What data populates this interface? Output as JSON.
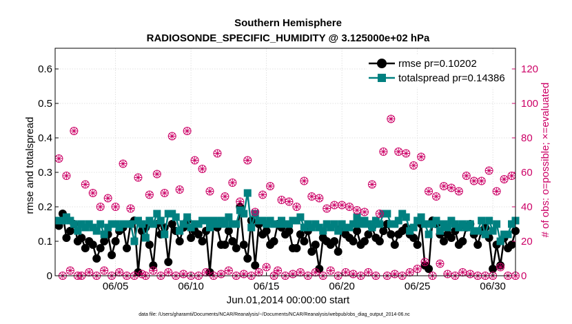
{
  "chart_data": {
    "type": "line",
    "title": "Southern Hemisphere",
    "subtitle": "RADIOSONDE_SPECIFIC_HUMIDITY @ 3.125000e+02 hPa",
    "xlabel": "Jun.01,2014 00:00:00 start",
    "ylabel_left": "rmse and totalspread",
    "ylabel_right": "# of obs: o=possible; ×=evaluated",
    "footnote": "data file: /Users/gharamti/Documents/NCAR/Reanalysis/~/Documents/NCAR/Reanalysis/webpub/obs_diag_output_2014-06.nc",
    "xlim": [
      1,
      31.5
    ],
    "x_ticks": [
      {
        "value": 5,
        "label": "06/05"
      },
      {
        "value": 10,
        "label": "06/10"
      },
      {
        "value": 15,
        "label": "06/15"
      },
      {
        "value": 20,
        "label": "06/20"
      },
      {
        "value": 25,
        "label": "06/25"
      },
      {
        "value": 30,
        "label": "06/30"
      }
    ],
    "ylim_left": [
      0,
      0.66
    ],
    "y_ticks_left": [
      "0",
      "0.1",
      "0.2",
      "0.3",
      "0.4",
      "0.5",
      "0.6"
    ],
    "ylim_right": [
      0,
      132
    ],
    "y_ticks_right": [
      "0",
      "20",
      "40",
      "60",
      "80",
      "100",
      "120"
    ],
    "x_start": 1.25,
    "x_step": 0.25,
    "series": [
      {
        "name": "rmse pr=0.10202",
        "axis": "left",
        "color": "#000000",
        "marker": "circle",
        "values": [
          0.145,
          0.18,
          0.11,
          0.13,
          0.15,
          0.1,
          0.11,
          0.08,
          0.1,
          0.09,
          0.05,
          0.08,
          0.1,
          0.12,
          0.06,
          0.1,
          0.13,
          0.14,
          0.08,
          0.15,
          0.16,
          0.01,
          0.13,
          0.14,
          0.09,
          0.03,
          0.15,
          0.12,
          0.14,
          0.04,
          0.15,
          0.13,
          0.1,
          0.14,
          0.16,
          0.11,
          0.13,
          0.12,
          0.1,
          0.13,
          0.01,
          0.15,
          0.14,
          0.09,
          0.09,
          0.13,
          0.1,
          0.08,
          0.2,
          0.09,
          0.05,
          0.16,
          0.03,
          0.15,
          0.12,
          0.13,
          0.09,
          0.1,
          0.15,
          0.14,
          0.12,
          0.13,
          0.08,
          0.08,
          0.12,
          0.1,
          0.13,
          0.07,
          0.09,
          0.02,
          0.11,
          0.1,
          0.09,
          0.1,
          0.07,
          0.14,
          0.12,
          0.11,
          0.1,
          0.13,
          0.09,
          0.1,
          0.12,
          0.14,
          0.11,
          0.1,
          0.13,
          0.15,
          0.12,
          0.09,
          0.12,
          0.13,
          0.14,
          0.12,
          0.11,
          0.09,
          0.15,
          0.03,
          0.02,
          0.16,
          0.15,
          0.12,
          0.1,
          0.12,
          0.11,
          0.13,
          0.09,
          0.1,
          0.14,
          0.15,
          0.12,
          0.09,
          0.13,
          0.14,
          0.11,
          0.02,
          0.09,
          0.03,
          0.11,
          0.08,
          0.09,
          0.13
        ]
      },
      {
        "name": "totalspread pr=0.14386",
        "axis": "left",
        "color": "#008080",
        "marker": "square",
        "values": [
          0.16,
          0.16,
          0.17,
          0.16,
          0.15,
          0.13,
          0.15,
          0.14,
          0.15,
          0.14,
          0.13,
          0.15,
          0.12,
          0.14,
          0.15,
          0.15,
          0.14,
          0.15,
          0.15,
          0.15,
          0.1,
          0.16,
          0.15,
          0.11,
          0.16,
          0.15,
          0.18,
          0.16,
          0.12,
          0.18,
          0.18,
          0.17,
          0.13,
          0.15,
          0.17,
          0.14,
          0.15,
          0.15,
          0.16,
          0.16,
          0.14,
          0.16,
          0.15,
          0.16,
          0.15,
          0.17,
          0.15,
          0.15,
          0.19,
          0.18,
          0.24,
          0.14,
          0.18,
          0.16,
          0.16,
          0.15,
          0.16,
          0.15,
          0.15,
          0.16,
          0.15,
          0.15,
          0.16,
          0.16,
          0.17,
          0.14,
          0.15,
          0.14,
          0.15,
          0.14,
          0.13,
          0.15,
          0.14,
          0.15,
          0.13,
          0.15,
          0.14,
          0.14,
          0.15,
          0.17,
          0.15,
          0.16,
          0.15,
          0.14,
          0.16,
          0.15,
          0.18,
          0.18,
          0.15,
          0.15,
          0.16,
          0.18,
          0.17,
          0.13,
          0.14,
          0.16,
          0.17,
          0.15,
          0.12,
          0.15,
          0.16,
          0.13,
          0.15,
          0.14,
          0.16,
          0.15,
          0.14,
          0.15,
          0.14,
          0.15,
          0.13,
          0.13,
          0.16,
          0.12,
          0.16,
          0.13,
          0.15,
          0.1,
          0.12,
          0.12,
          0.15,
          0.16
        ]
      },
      {
        "name": "obs possible",
        "axis": "right",
        "color": "#CC0066",
        "marker": "open-circle",
        "values": [
          68,
          0,
          58,
          3,
          84,
          0,
          0,
          53,
          2,
          48,
          0,
          40,
          3,
          45,
          0,
          40,
          2,
          65,
          0,
          39,
          0,
          57,
          1,
          0,
          47,
          3,
          59,
          0,
          48,
          2,
          81,
          0,
          50,
          1,
          84,
          0,
          67,
          0,
          62,
          2,
          49,
          0,
          71,
          1,
          46,
          3,
          54,
          0,
          43,
          1,
          67,
          0,
          37,
          2,
          47,
          5,
          52,
          0,
          3,
          44,
          0,
          43,
          1,
          40,
          2,
          55,
          0,
          46,
          2,
          45,
          0,
          39,
          3,
          41,
          0,
          41,
          2,
          40,
          1,
          38,
          0,
          37,
          2,
          53,
          0,
          36,
          72,
          0,
          91,
          1,
          72,
          0,
          71,
          2,
          64,
          4,
          69,
          8,
          49,
          0,
          46,
          7,
          52,
          1,
          51,
          0,
          49,
          2,
          58,
          1,
          55,
          0,
          55,
          0,
          61,
          0,
          49,
          5,
          56,
          0,
          58,
          0
        ]
      },
      {
        "name": "obs evaluated",
        "axis": "right",
        "color": "#CC0066",
        "marker": "x",
        "values": [
          68,
          0,
          58,
          3,
          84,
          0,
          0,
          53,
          2,
          48,
          0,
          40,
          3,
          45,
          0,
          40,
          2,
          65,
          0,
          39,
          0,
          57,
          1,
          0,
          47,
          3,
          59,
          0,
          48,
          2,
          81,
          0,
          50,
          1,
          84,
          0,
          67,
          0,
          62,
          2,
          49,
          0,
          71,
          1,
          46,
          3,
          54,
          0,
          43,
          1,
          67,
          0,
          37,
          2,
          47,
          5,
          52,
          0,
          3,
          44,
          0,
          43,
          1,
          40,
          2,
          55,
          0,
          46,
          2,
          45,
          0,
          39,
          3,
          41,
          0,
          41,
          2,
          40,
          1,
          38,
          0,
          37,
          2,
          53,
          0,
          36,
          72,
          0,
          91,
          1,
          72,
          0,
          71,
          2,
          64,
          4,
          69,
          8,
          49,
          0,
          46,
          7,
          52,
          1,
          51,
          0,
          49,
          2,
          58,
          1,
          55,
          0,
          55,
          0,
          61,
          0,
          49,
          5,
          56,
          0,
          58,
          0
        ]
      }
    ],
    "legend": {
      "position": "top-right",
      "entries": [
        "rmse pr=0.10202",
        "totalspread pr=0.14386"
      ]
    },
    "colors": {
      "left_axis": "#000000",
      "right_axis": "#CC0066",
      "grid": "#d9d9d9"
    }
  }
}
